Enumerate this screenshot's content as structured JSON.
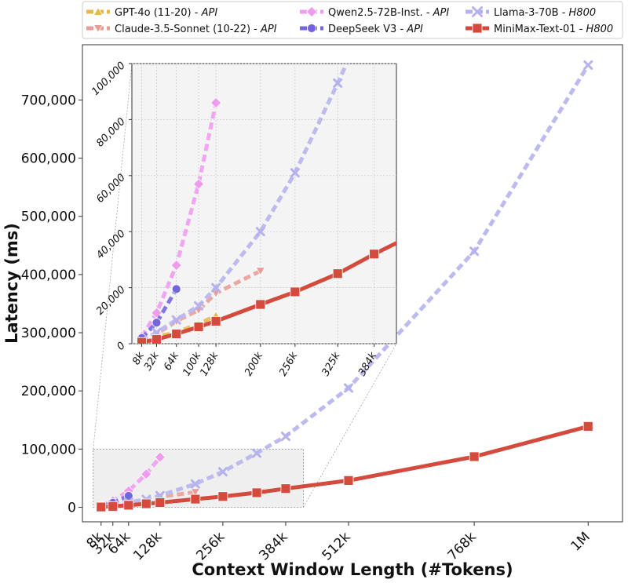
{
  "chart_data": {
    "type": "line",
    "xlabel": "Context Window Length (#Tokens)",
    "ylabel": "Latency (ms)",
    "xlim": [
      -30000,
      1070000
    ],
    "ylim": [
      -25000,
      795000
    ],
    "x_ticks": [
      {
        "value": 8000,
        "label": "8k"
      },
      {
        "value": 32000,
        "label": "32k"
      },
      {
        "value": 64000,
        "label": "64k"
      },
      {
        "value": 128000,
        "label": "128k"
      },
      {
        "value": 256000,
        "label": "256k"
      },
      {
        "value": 384000,
        "label": "384k"
      },
      {
        "value": 512000,
        "label": "512k"
      },
      {
        "value": 768000,
        "label": "768k"
      },
      {
        "value": 1000000,
        "label": "1M"
      }
    ],
    "y_ticks": [
      {
        "value": 0,
        "label": "0"
      },
      {
        "value": 100000,
        "label": "100,000"
      },
      {
        "value": 200000,
        "label": "200,000"
      },
      {
        "value": 300000,
        "label": "300,000"
      },
      {
        "value": 400000,
        "label": "400,000"
      },
      {
        "value": 500000,
        "label": "500,000"
      },
      {
        "value": 600000,
        "label": "600,000"
      },
      {
        "value": 700000,
        "label": "700,000"
      }
    ],
    "legend_position": "top",
    "series": [
      {
        "name": "GPT-4o (11-20)",
        "tag": "API",
        "color": "#e8b84f",
        "marker": "triangle-up",
        "dash": "dashed",
        "x": [
          8000,
          32000,
          64000,
          100000,
          128000
        ],
        "y": [
          500,
          2500,
          4000,
          7000,
          10000
        ]
      },
      {
        "name": "Claude-3.5-Sonnet (10-22)",
        "tag": "API",
        "color": "#e89e96",
        "marker": "triangle-down",
        "dash": "dashed",
        "x": [
          8000,
          32000,
          64000,
          100000,
          128000,
          200000
        ],
        "y": [
          500,
          3500,
          8000,
          12000,
          18000,
          26000
        ]
      },
      {
        "name": "Qwen2.5-72B-Inst.",
        "tag": "API",
        "color": "#ee9cee",
        "marker": "diamond",
        "dash": "dashed",
        "x": [
          8000,
          32000,
          64000,
          100000,
          128000
        ],
        "y": [
          2500,
          11000,
          28000,
          57000,
          86000
        ]
      },
      {
        "name": "DeepSeek V3",
        "tag": "API",
        "color": "#7366dc",
        "marker": "circle",
        "dash": "dashed",
        "x": [
          8000,
          32000,
          64000
        ],
        "y": [
          2000,
          7500,
          19500
        ]
      },
      {
        "name": "Llama-3-70B",
        "tag": "H800",
        "color": "#b6b2ee",
        "marker": "x",
        "dash": "dashed",
        "x": [
          8000,
          32000,
          64000,
          100000,
          128000,
          200000,
          256000,
          325000,
          384000,
          512000,
          768000,
          1000000
        ],
        "y": [
          1000,
          4000,
          8500,
          13500,
          20000,
          40000,
          61000,
          93000,
          122000,
          205000,
          440000,
          760000
        ]
      },
      {
        "name": "MiniMax-Text-01",
        "tag": "H800",
        "color": "#d44a3c",
        "marker": "square",
        "dash": "solid",
        "x": [
          8000,
          32000,
          64000,
          100000,
          128000,
          200000,
          256000,
          325000,
          384000,
          512000,
          768000,
          1000000
        ],
        "y": [
          500,
          1500,
          3500,
          6000,
          8000,
          14000,
          18500,
          25000,
          32000,
          46000,
          87000,
          139000
        ]
      }
    ],
    "inset": {
      "xlim": [
        -8000,
        420000
      ],
      "ylim": [
        0,
        100000
      ],
      "x_ticks": [
        {
          "value": 8000,
          "label": "8k"
        },
        {
          "value": 32000,
          "label": "32k"
        },
        {
          "value": 64000,
          "label": "64k"
        },
        {
          "value": 100000,
          "label": "100k"
        },
        {
          "value": 128000,
          "label": "128k"
        },
        {
          "value": 200000,
          "label": "200k"
        },
        {
          "value": 256000,
          "label": "256k"
        },
        {
          "value": 325000,
          "label": "325k"
        },
        {
          "value": 384000,
          "label": "384k"
        }
      ],
      "y_ticks": [
        {
          "value": 0,
          "label": "0"
        },
        {
          "value": 20000,
          "label": "20,000"
        },
        {
          "value": 40000,
          "label": "40,000"
        },
        {
          "value": 60000,
          "label": "60,000"
        },
        {
          "value": 80000,
          "label": "80,000"
        },
        {
          "value": 100000,
          "label": "100,000"
        }
      ],
      "grid": true
    }
  }
}
